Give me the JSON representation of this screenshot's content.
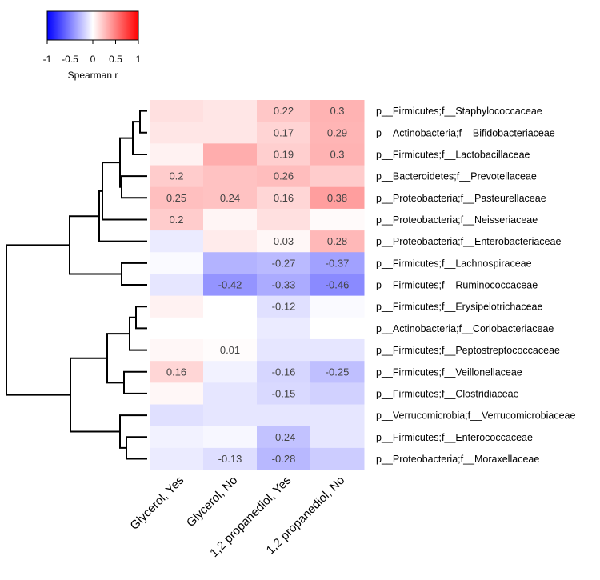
{
  "chart_data": {
    "type": "heatmap",
    "title": "",
    "legend": {
      "label": "Spearman r",
      "ticks": [
        "-1",
        "-0.5",
        "0",
        "0.5",
        "1"
      ],
      "range": [
        -1,
        1
      ],
      "colors": {
        "low": "#0000ff",
        "mid": "#ffffff",
        "high": "#ff0000"
      },
      "placement": "top-left"
    },
    "columns": [
      "Glycerol, Yes",
      "Glycerol, No",
      "1,2 propanediol, Yes",
      "1,2 propanediol, No"
    ],
    "rows": [
      {
        "label": "p__Firmicutes;f__Staphylococcaceae",
        "values": [
          0.12,
          0.1,
          0.22,
          0.3
        ],
        "shown": [
          null,
          null,
          "0.22",
          "0.3"
        ]
      },
      {
        "label": "p__Actinobacteria;f__Bifidobacteriaceae",
        "values": [
          0.1,
          0.1,
          0.17,
          0.29
        ],
        "shown": [
          null,
          null,
          "0.17",
          "0.29"
        ]
      },
      {
        "label": "p__Firmicutes;f__Lactobacillaceae",
        "values": [
          0.05,
          0.32,
          0.19,
          0.3
        ],
        "shown": [
          null,
          null,
          "0.19",
          "0.3"
        ]
      },
      {
        "label": "p__Bacteroidetes;f__Prevotellaceae",
        "values": [
          0.2,
          0.24,
          0.26,
          0.2
        ],
        "shown": [
          "0.2",
          null,
          "0.26",
          null
        ]
      },
      {
        "label": "p__Proteobacteria;f__Pasteurellaceae",
        "values": [
          0.25,
          0.24,
          0.16,
          0.38
        ],
        "shown": [
          "0.25",
          "0.24",
          "0.16",
          "0.38"
        ]
      },
      {
        "label": "p__Proteobacteria;f__Neisseriaceae",
        "values": [
          0.2,
          0.04,
          0.12,
          0.02
        ],
        "shown": [
          "0.2",
          null,
          null,
          null
        ]
      },
      {
        "label": "p__Proteobacteria;f__Enterobacteriaceae",
        "values": [
          -0.08,
          0.08,
          0.03,
          0.28
        ],
        "shown": [
          null,
          null,
          "0.03",
          "0.28"
        ]
      },
      {
        "label": "p__Firmicutes;f__Lachnospiraceae",
        "values": [
          -0.02,
          -0.3,
          -0.27,
          -0.37
        ],
        "shown": [
          null,
          null,
          "-0.27",
          "-0.37"
        ]
      },
      {
        "label": "p__Firmicutes;f__Ruminococcaceae",
        "values": [
          -0.1,
          -0.42,
          -0.33,
          -0.46
        ],
        "shown": [
          null,
          "-0.42",
          "-0.33",
          "-0.46"
        ]
      },
      {
        "label": "p__Firmicutes;f__Erysipelotrichaceae",
        "values": [
          0.05,
          0.0,
          -0.12,
          -0.02
        ],
        "shown": [
          null,
          null,
          "-0.12",
          null
        ]
      },
      {
        "label": "p__Actinobacteria;f__Coriobacteriaceae",
        "values": [
          0.0,
          0.0,
          -0.08,
          0.0
        ],
        "shown": [
          null,
          null,
          null,
          null
        ]
      },
      {
        "label": "p__Firmicutes;f__Peptostreptococcaceae",
        "values": [
          0.03,
          0.01,
          -0.1,
          -0.1
        ],
        "shown": [
          null,
          "0.01",
          null,
          null
        ]
      },
      {
        "label": "p__Firmicutes;f__Veillonellaceae",
        "values": [
          0.16,
          -0.05,
          -0.16,
          -0.25
        ],
        "shown": [
          "0.16",
          null,
          "-0.16",
          "-0.25"
        ]
      },
      {
        "label": "p__Firmicutes;f__Clostridiaceae",
        "values": [
          0.03,
          -0.1,
          -0.15,
          -0.18
        ],
        "shown": [
          null,
          null,
          "-0.15",
          null
        ]
      },
      {
        "label": "p__Verrucomicrobia;f__Verrucomicrobiaceae",
        "values": [
          -0.12,
          -0.1,
          -0.1,
          -0.1
        ],
        "shown": [
          null,
          null,
          null,
          null
        ]
      },
      {
        "label": "p__Firmicutes;f__Enterococcaceae",
        "values": [
          -0.05,
          -0.03,
          -0.24,
          -0.1
        ],
        "shown": [
          null,
          null,
          "-0.24",
          null
        ]
      },
      {
        "label": "p__Proteobacteria;f__Moraxellaceae",
        "values": [
          -0.08,
          -0.13,
          -0.28,
          -0.2
        ],
        "shown": [
          null,
          "-0.13",
          "-0.28",
          null
        ]
      }
    ]
  }
}
